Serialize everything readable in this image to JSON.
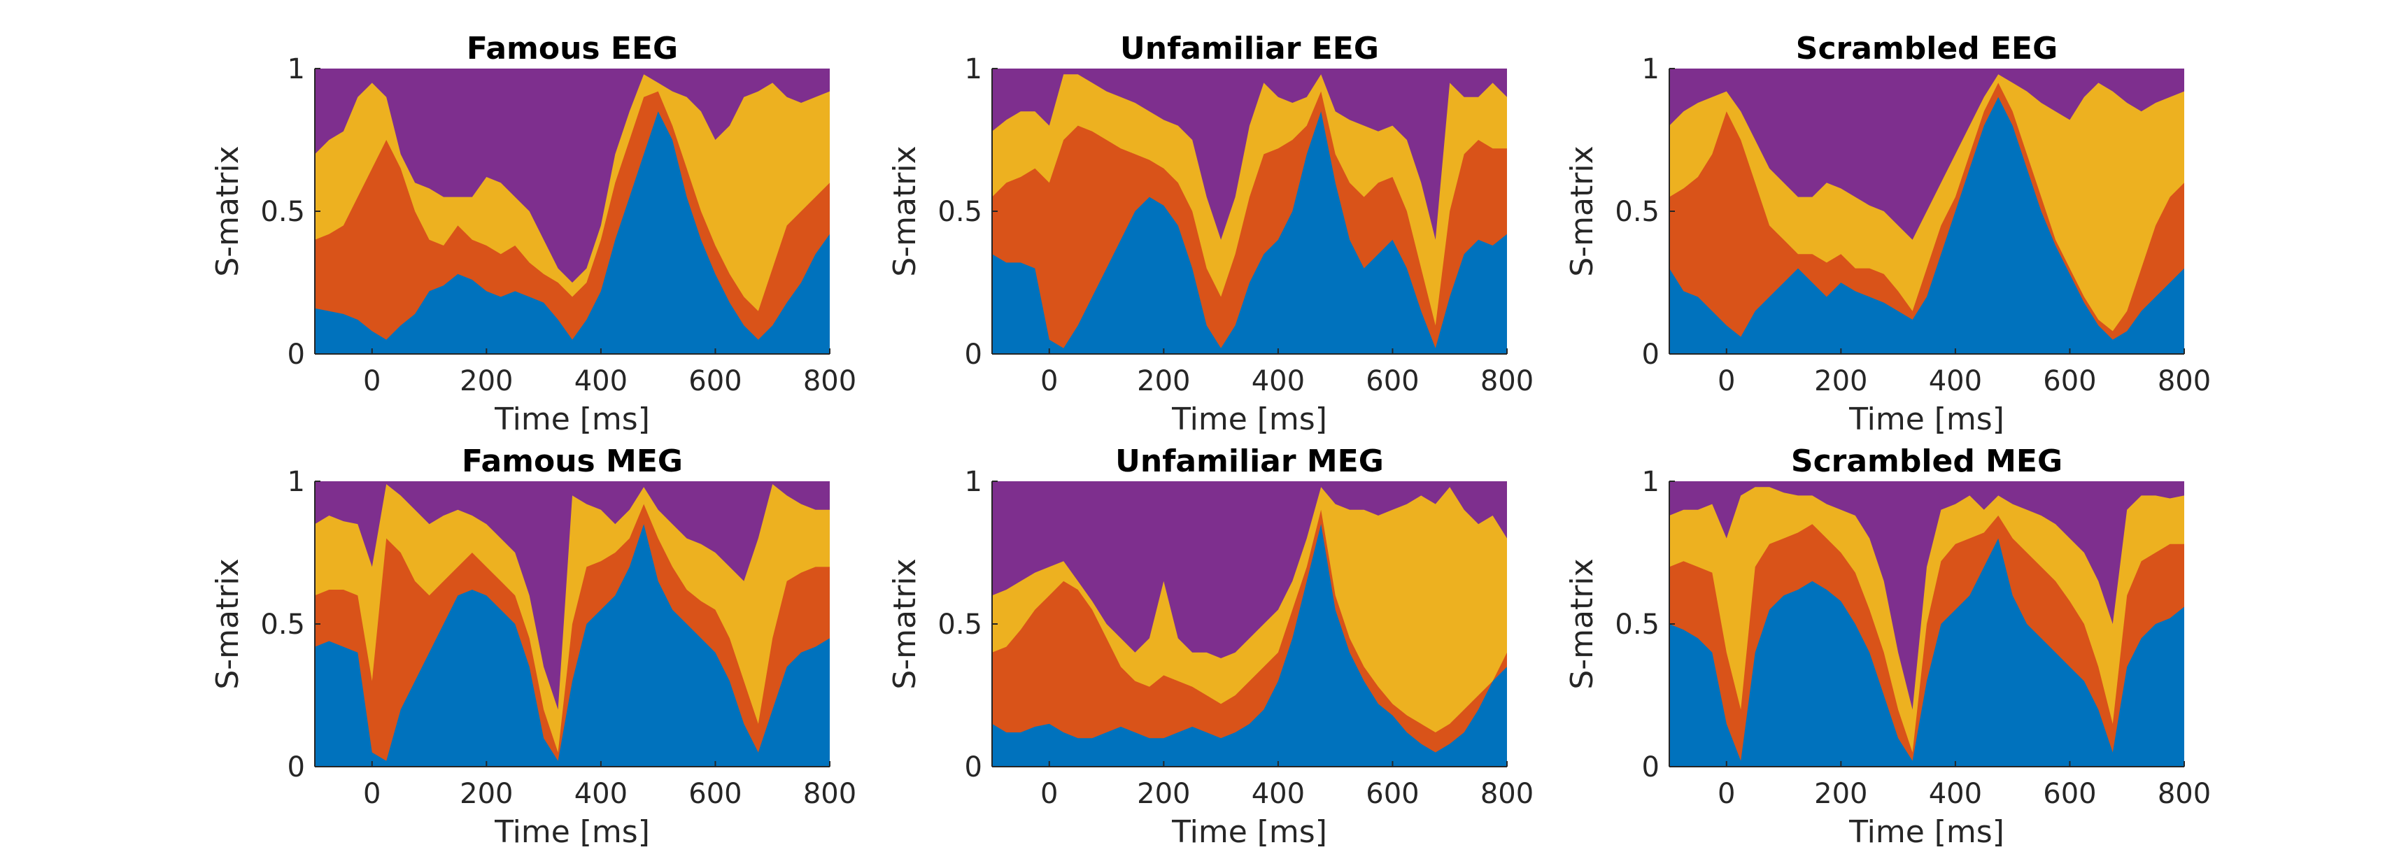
{
  "colors": {
    "band1": "#0072BD",
    "band2": "#D95319",
    "band3": "#EDB120",
    "band4": "#7E2F8E"
  },
  "chart_data": [
    {
      "type": "area",
      "title": "Famous EEG",
      "xlabel": "Time [ms]",
      "ylabel": "S-matrix",
      "xlim": [
        -100,
        800
      ],
      "ylim": [
        0,
        1
      ],
      "xticks": [
        0,
        200,
        400,
        600,
        800
      ],
      "yticks": [
        0,
        0.5,
        1
      ],
      "x": [
        -100,
        -75,
        -50,
        -25,
        0,
        25,
        50,
        75,
        100,
        125,
        150,
        175,
        200,
        225,
        250,
        275,
        300,
        325,
        350,
        375,
        400,
        425,
        450,
        475,
        500,
        525,
        550,
        575,
        600,
        625,
        650,
        675,
        700,
        725,
        750,
        775,
        800
      ],
      "series": [
        {
          "values": [
            0.16,
            0.15,
            0.14,
            0.12,
            0.08,
            0.05,
            0.1,
            0.14,
            0.22,
            0.24,
            0.28,
            0.26,
            0.22,
            0.2,
            0.22,
            0.2,
            0.18,
            0.12,
            0.05,
            0.12,
            0.22,
            0.4,
            0.55,
            0.7,
            0.85,
            0.75,
            0.55,
            0.4,
            0.28,
            0.18,
            0.1,
            0.05,
            0.1,
            0.18,
            0.25,
            0.35,
            0.42
          ]
        },
        {
          "values": [
            0.4,
            0.42,
            0.45,
            0.55,
            0.65,
            0.75,
            0.65,
            0.5,
            0.4,
            0.38,
            0.45,
            0.4,
            0.38,
            0.35,
            0.38,
            0.32,
            0.28,
            0.25,
            0.2,
            0.25,
            0.4,
            0.6,
            0.75,
            0.9,
            0.92,
            0.8,
            0.65,
            0.5,
            0.38,
            0.28,
            0.2,
            0.15,
            0.3,
            0.45,
            0.5,
            0.55,
            0.6
          ]
        },
        {
          "values": [
            0.7,
            0.75,
            0.78,
            0.9,
            0.95,
            0.9,
            0.7,
            0.6,
            0.58,
            0.55,
            0.55,
            0.55,
            0.62,
            0.6,
            0.55,
            0.5,
            0.4,
            0.3,
            0.25,
            0.3,
            0.45,
            0.7,
            0.85,
            0.98,
            0.95,
            0.92,
            0.9,
            0.85,
            0.75,
            0.8,
            0.9,
            0.92,
            0.95,
            0.9,
            0.88,
            0.9,
            0.92
          ]
        }
      ]
    },
    {
      "type": "area",
      "title": "Unfamiliar EEG",
      "xlabel": "Time [ms]",
      "ylabel": "S-matrix",
      "xlim": [
        -100,
        800
      ],
      "ylim": [
        0,
        1
      ],
      "xticks": [
        0,
        200,
        400,
        600,
        800
      ],
      "yticks": [
        0,
        0.5,
        1
      ],
      "x": [
        -100,
        -75,
        -50,
        -25,
        0,
        25,
        50,
        75,
        100,
        125,
        150,
        175,
        200,
        225,
        250,
        275,
        300,
        325,
        350,
        375,
        400,
        425,
        450,
        475,
        500,
        525,
        550,
        575,
        600,
        625,
        650,
        675,
        700,
        725,
        750,
        775,
        800
      ],
      "series": [
        {
          "values": [
            0.35,
            0.32,
            0.32,
            0.3,
            0.05,
            0.02,
            0.1,
            0.2,
            0.3,
            0.4,
            0.5,
            0.55,
            0.52,
            0.45,
            0.3,
            0.1,
            0.02,
            0.1,
            0.25,
            0.35,
            0.4,
            0.5,
            0.7,
            0.85,
            0.6,
            0.4,
            0.3,
            0.35,
            0.4,
            0.3,
            0.15,
            0.02,
            0.2,
            0.35,
            0.4,
            0.38,
            0.42
          ]
        },
        {
          "values": [
            0.55,
            0.6,
            0.62,
            0.65,
            0.6,
            0.75,
            0.8,
            0.78,
            0.75,
            0.72,
            0.7,
            0.68,
            0.65,
            0.6,
            0.5,
            0.3,
            0.2,
            0.35,
            0.55,
            0.7,
            0.72,
            0.75,
            0.8,
            0.92,
            0.7,
            0.6,
            0.55,
            0.6,
            0.62,
            0.5,
            0.3,
            0.1,
            0.5,
            0.7,
            0.75,
            0.72,
            0.72
          ]
        },
        {
          "values": [
            0.78,
            0.82,
            0.85,
            0.85,
            0.8,
            0.98,
            0.98,
            0.95,
            0.92,
            0.9,
            0.88,
            0.85,
            0.82,
            0.8,
            0.75,
            0.55,
            0.4,
            0.55,
            0.8,
            0.95,
            0.9,
            0.88,
            0.9,
            0.98,
            0.85,
            0.82,
            0.8,
            0.78,
            0.8,
            0.75,
            0.6,
            0.4,
            0.95,
            0.9,
            0.9,
            0.95,
            0.9
          ]
        }
      ]
    },
    {
      "type": "area",
      "title": "Scrambled EEG",
      "xlabel": "Time [ms]",
      "ylabel": "S-matrix",
      "xlim": [
        -100,
        800
      ],
      "ylim": [
        0,
        1
      ],
      "xticks": [
        0,
        200,
        400,
        600,
        800
      ],
      "yticks": [
        0,
        0.5,
        1
      ],
      "x": [
        -100,
        -75,
        -50,
        -25,
        0,
        25,
        50,
        75,
        100,
        125,
        150,
        175,
        200,
        225,
        250,
        275,
        300,
        325,
        350,
        375,
        400,
        425,
        450,
        475,
        500,
        525,
        550,
        575,
        600,
        625,
        650,
        675,
        700,
        725,
        750,
        775,
        800
      ],
      "series": [
        {
          "values": [
            0.3,
            0.22,
            0.2,
            0.15,
            0.1,
            0.06,
            0.15,
            0.2,
            0.25,
            0.3,
            0.25,
            0.2,
            0.25,
            0.22,
            0.2,
            0.18,
            0.15,
            0.12,
            0.2,
            0.35,
            0.5,
            0.65,
            0.8,
            0.9,
            0.8,
            0.65,
            0.5,
            0.38,
            0.28,
            0.18,
            0.1,
            0.05,
            0.08,
            0.15,
            0.2,
            0.25,
            0.3
          ]
        },
        {
          "values": [
            0.55,
            0.58,
            0.62,
            0.7,
            0.85,
            0.75,
            0.6,
            0.45,
            0.4,
            0.35,
            0.35,
            0.32,
            0.35,
            0.3,
            0.3,
            0.28,
            0.22,
            0.15,
            0.3,
            0.45,
            0.55,
            0.7,
            0.85,
            0.95,
            0.85,
            0.7,
            0.55,
            0.4,
            0.3,
            0.2,
            0.12,
            0.08,
            0.15,
            0.3,
            0.45,
            0.55,
            0.6
          ]
        },
        {
          "values": [
            0.8,
            0.85,
            0.88,
            0.9,
            0.92,
            0.85,
            0.75,
            0.65,
            0.6,
            0.55,
            0.55,
            0.6,
            0.58,
            0.55,
            0.52,
            0.5,
            0.45,
            0.4,
            0.5,
            0.6,
            0.7,
            0.8,
            0.9,
            0.98,
            0.95,
            0.92,
            0.88,
            0.85,
            0.82,
            0.9,
            0.95,
            0.92,
            0.88,
            0.85,
            0.88,
            0.9,
            0.92
          ]
        }
      ]
    },
    {
      "type": "area",
      "title": "Famous MEG",
      "xlabel": "Time [ms]",
      "ylabel": "S-matrix",
      "xlim": [
        -100,
        800
      ],
      "ylim": [
        0,
        1
      ],
      "xticks": [
        0,
        200,
        400,
        600,
        800
      ],
      "yticks": [
        0,
        0.5,
        1
      ],
      "x": [
        -100,
        -75,
        -50,
        -25,
        0,
        25,
        50,
        75,
        100,
        125,
        150,
        175,
        200,
        225,
        250,
        275,
        300,
        325,
        350,
        375,
        400,
        425,
        450,
        475,
        500,
        525,
        550,
        575,
        600,
        625,
        650,
        675,
        700,
        725,
        750,
        775,
        800
      ],
      "series": [
        {
          "values": [
            0.42,
            0.44,
            0.42,
            0.4,
            0.05,
            0.02,
            0.2,
            0.3,
            0.4,
            0.5,
            0.6,
            0.62,
            0.6,
            0.55,
            0.5,
            0.35,
            0.1,
            0.02,
            0.3,
            0.5,
            0.55,
            0.6,
            0.7,
            0.85,
            0.65,
            0.55,
            0.5,
            0.45,
            0.4,
            0.3,
            0.15,
            0.05,
            0.2,
            0.35,
            0.4,
            0.42,
            0.45
          ]
        },
        {
          "values": [
            0.6,
            0.62,
            0.62,
            0.6,
            0.3,
            0.8,
            0.75,
            0.65,
            0.6,
            0.65,
            0.7,
            0.75,
            0.7,
            0.65,
            0.6,
            0.45,
            0.2,
            0.05,
            0.5,
            0.7,
            0.72,
            0.75,
            0.8,
            0.92,
            0.8,
            0.7,
            0.62,
            0.58,
            0.55,
            0.45,
            0.3,
            0.15,
            0.45,
            0.65,
            0.68,
            0.7,
            0.7
          ]
        },
        {
          "values": [
            0.85,
            0.88,
            0.86,
            0.85,
            0.7,
            0.99,
            0.95,
            0.9,
            0.85,
            0.88,
            0.9,
            0.88,
            0.85,
            0.8,
            0.75,
            0.6,
            0.35,
            0.2,
            0.95,
            0.92,
            0.9,
            0.85,
            0.9,
            0.98,
            0.9,
            0.85,
            0.8,
            0.78,
            0.75,
            0.7,
            0.65,
            0.8,
            0.99,
            0.95,
            0.92,
            0.9,
            0.9
          ]
        }
      ]
    },
    {
      "type": "area",
      "title": "Unfamiliar MEG",
      "xlabel": "Time [ms]",
      "ylabel": "S-matrix",
      "xlim": [
        -100,
        800
      ],
      "ylim": [
        0,
        1
      ],
      "xticks": [
        0,
        200,
        400,
        600,
        800
      ],
      "yticks": [
        0,
        0.5,
        1
      ],
      "x": [
        -100,
        -75,
        -50,
        -25,
        0,
        25,
        50,
        75,
        100,
        125,
        150,
        175,
        200,
        225,
        250,
        275,
        300,
        325,
        350,
        375,
        400,
        425,
        450,
        475,
        500,
        525,
        550,
        575,
        600,
        625,
        650,
        675,
        700,
        725,
        750,
        775,
        800
      ],
      "series": [
        {
          "values": [
            0.15,
            0.12,
            0.12,
            0.14,
            0.15,
            0.12,
            0.1,
            0.1,
            0.12,
            0.14,
            0.12,
            0.1,
            0.1,
            0.12,
            0.14,
            0.12,
            0.1,
            0.12,
            0.15,
            0.2,
            0.3,
            0.45,
            0.65,
            0.85,
            0.55,
            0.4,
            0.3,
            0.22,
            0.18,
            0.12,
            0.08,
            0.05,
            0.08,
            0.12,
            0.2,
            0.3,
            0.35
          ]
        },
        {
          "values": [
            0.4,
            0.42,
            0.48,
            0.55,
            0.6,
            0.65,
            0.62,
            0.55,
            0.45,
            0.35,
            0.3,
            0.28,
            0.32,
            0.3,
            0.28,
            0.25,
            0.22,
            0.25,
            0.3,
            0.35,
            0.4,
            0.55,
            0.7,
            0.9,
            0.6,
            0.45,
            0.35,
            0.28,
            0.22,
            0.18,
            0.15,
            0.12,
            0.15,
            0.2,
            0.25,
            0.3,
            0.4
          ]
        },
        {
          "values": [
            0.6,
            0.62,
            0.65,
            0.68,
            0.7,
            0.72,
            0.65,
            0.58,
            0.5,
            0.45,
            0.4,
            0.45,
            0.65,
            0.45,
            0.4,
            0.4,
            0.38,
            0.4,
            0.45,
            0.5,
            0.55,
            0.65,
            0.8,
            0.98,
            0.92,
            0.9,
            0.9,
            0.88,
            0.9,
            0.92,
            0.95,
            0.92,
            0.98,
            0.9,
            0.85,
            0.88,
            0.8
          ]
        }
      ]
    },
    {
      "type": "area",
      "title": "Scrambled MEG",
      "xlabel": "Time [ms]",
      "ylabel": "S-matrix",
      "xlim": [
        -100,
        800
      ],
      "ylim": [
        0,
        1
      ],
      "xticks": [
        0,
        200,
        400,
        600,
        800
      ],
      "yticks": [
        0,
        0.5,
        1
      ],
      "x": [
        -100,
        -75,
        -50,
        -25,
        0,
        25,
        50,
        75,
        100,
        125,
        150,
        175,
        200,
        225,
        250,
        275,
        300,
        325,
        350,
        375,
        400,
        425,
        450,
        475,
        500,
        525,
        550,
        575,
        600,
        625,
        650,
        675,
        700,
        725,
        750,
        775,
        800
      ],
      "series": [
        {
          "values": [
            0.5,
            0.48,
            0.45,
            0.4,
            0.15,
            0.02,
            0.4,
            0.55,
            0.6,
            0.62,
            0.65,
            0.62,
            0.58,
            0.5,
            0.4,
            0.25,
            0.1,
            0.02,
            0.3,
            0.5,
            0.55,
            0.6,
            0.7,
            0.8,
            0.6,
            0.5,
            0.45,
            0.4,
            0.35,
            0.3,
            0.2,
            0.05,
            0.35,
            0.45,
            0.5,
            0.52,
            0.56
          ]
        },
        {
          "values": [
            0.7,
            0.72,
            0.7,
            0.68,
            0.4,
            0.2,
            0.7,
            0.78,
            0.8,
            0.82,
            0.85,
            0.8,
            0.75,
            0.68,
            0.55,
            0.4,
            0.2,
            0.05,
            0.5,
            0.72,
            0.78,
            0.8,
            0.82,
            0.88,
            0.8,
            0.75,
            0.7,
            0.65,
            0.58,
            0.5,
            0.35,
            0.15,
            0.6,
            0.72,
            0.75,
            0.78,
            0.78
          ]
        },
        {
          "values": [
            0.88,
            0.9,
            0.9,
            0.92,
            0.8,
            0.95,
            0.98,
            0.98,
            0.96,
            0.95,
            0.95,
            0.92,
            0.9,
            0.88,
            0.8,
            0.65,
            0.4,
            0.2,
            0.7,
            0.9,
            0.92,
            0.95,
            0.9,
            0.95,
            0.92,
            0.9,
            0.88,
            0.85,
            0.8,
            0.75,
            0.65,
            0.5,
            0.9,
            0.95,
            0.95,
            0.94,
            0.95
          ]
        }
      ]
    }
  ]
}
